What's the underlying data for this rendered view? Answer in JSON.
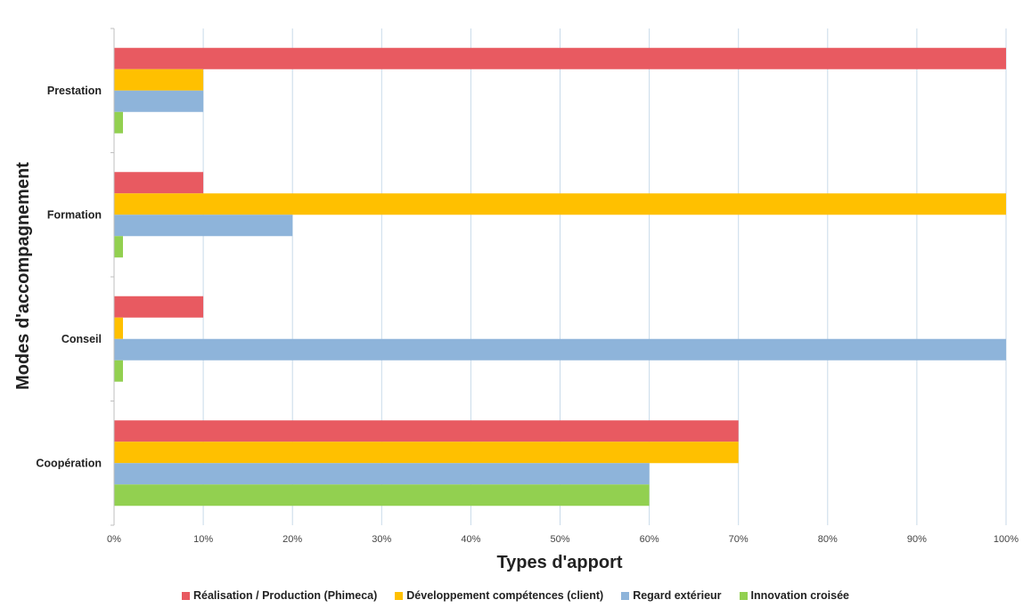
{
  "chart_data": {
    "type": "bar",
    "orientation": "horizontal",
    "categories": [
      "Prestation",
      "Formation",
      "Conseil",
      "Coopération"
    ],
    "series": [
      {
        "name": "Réalisation / Production (Phimeca)",
        "color": "#E85A61",
        "values": [
          100,
          10,
          10,
          70
        ]
      },
      {
        "name": "Développement compétences (client)",
        "color": "#FFC000",
        "values": [
          10,
          100,
          1,
          70
        ]
      },
      {
        "name": "Regard extérieur",
        "color": "#8EB4DA",
        "values": [
          10,
          20,
          100,
          60
        ]
      },
      {
        "name": "Innovation croisée",
        "color": "#92D050",
        "values": [
          1,
          1,
          1,
          60
        ]
      }
    ],
    "xlabel": "Types d'apport",
    "ylabel": "Modes d'accompagnement",
    "xlim": [
      0,
      100
    ],
    "xticks": [
      "0%",
      "10%",
      "20%",
      "30%",
      "40%",
      "50%",
      "60%",
      "70%",
      "80%",
      "90%",
      "100%"
    ],
    "grid": "vertical",
    "legend_position": "bottom"
  }
}
